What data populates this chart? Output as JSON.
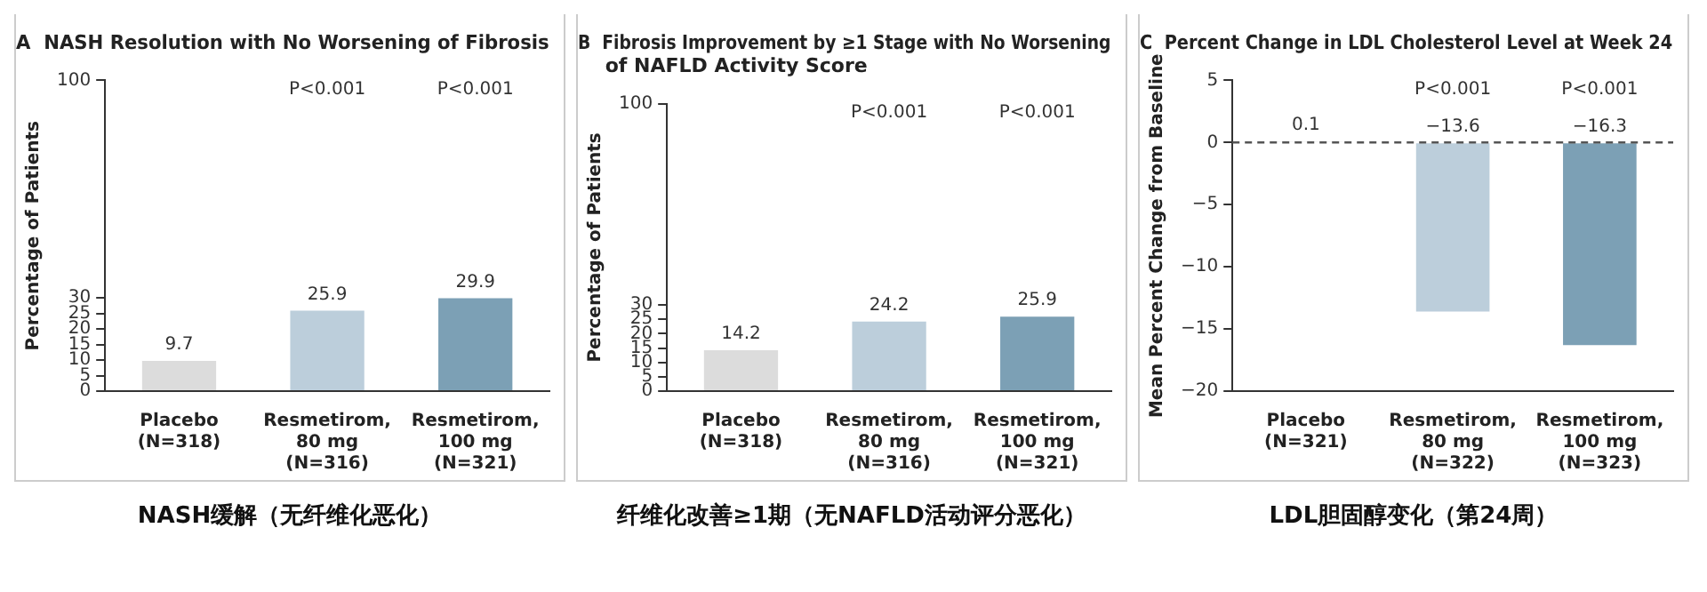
{
  "chart_data": [
    {
      "type": "bar",
      "title": "A  NASH Resolution with No Worsening of Fibrosis",
      "ylabel": "Percentage of Patients",
      "categories": [
        "Placebo\n(N=318)",
        "Resmetirom,\n80 mg\n(N=316)",
        "Resmetirom,\n100 mg\n(N=321)"
      ],
      "values": [
        9.7,
        25.9,
        29.9
      ],
      "colors": [
        "#dcdcdc",
        "#bccedb",
        "#7ca0b5"
      ],
      "data_labels": true,
      "ylim": [
        0,
        100
      ],
      "yticks": [
        0,
        5,
        10,
        15,
        20,
        25,
        30,
        100
      ],
      "annotations": [
        "P<0.001",
        "P<0.001",
        "NASH缓解（无纤维化恶化）"
      ]
    },
    {
      "type": "bar",
      "title": "B  Fibrosis Improvement by ≥1 Stage with No Worsening\n    of NAFLD Activity Score",
      "ylabel": "Percentage of Patients",
      "categories": [
        "Placebo\n(N=318)",
        "Resmetirom,\n80 mg\n(N=316)",
        "Resmetirom,\n100 mg\n(N=321)"
      ],
      "values": [
        14.2,
        24.2,
        25.9
      ],
      "colors": [
        "#dcdcdc",
        "#bccedb",
        "#7ca0b5"
      ],
      "data_labels": true,
      "ylim": [
        0,
        100
      ],
      "yticks": [
        0,
        5,
        10,
        15,
        20,
        25,
        30,
        100
      ],
      "annotations": [
        "P<0.001",
        "P<0.001",
        "纤维化改善≥1期（无NAFLD活动评分恶化）"
      ]
    },
    {
      "type": "bar",
      "title": "C  Percent Change in LDL Cholesterol Level at Week 24",
      "ylabel": "Mean Percent Change from Baseline",
      "categories": [
        "Placebo\n(N=321)",
        "Resmetirom,\n80 mg\n(N=322)",
        "Resmetirom,\n100 mg\n(N=323)"
      ],
      "values": [
        0.1,
        -13.6,
        -16.3
      ],
      "colors": [
        "#dcdcdc",
        "#bccedb",
        "#7ca0b5"
      ],
      "data_labels": true,
      "value_labels": [
        "0.1",
        "−13.6",
        "−16.3"
      ],
      "ylim": [
        -20,
        5
      ],
      "yticks": [
        {
          "value": -20,
          "label": "−20"
        },
        {
          "value": -15,
          "label": "−15"
        },
        {
          "value": -10,
          "label": "−10"
        },
        {
          "value": -5,
          "label": "−5"
        },
        0,
        5
      ],
      "ref_lines": [
        {
          "axis": "y",
          "value": 0,
          "line_style": "dashed",
          "color": "#555555"
        }
      ],
      "annotations": [
        "P<0.001",
        "P<0.001",
        "LDL胆固醇变化（第24周）"
      ]
    }
  ]
}
